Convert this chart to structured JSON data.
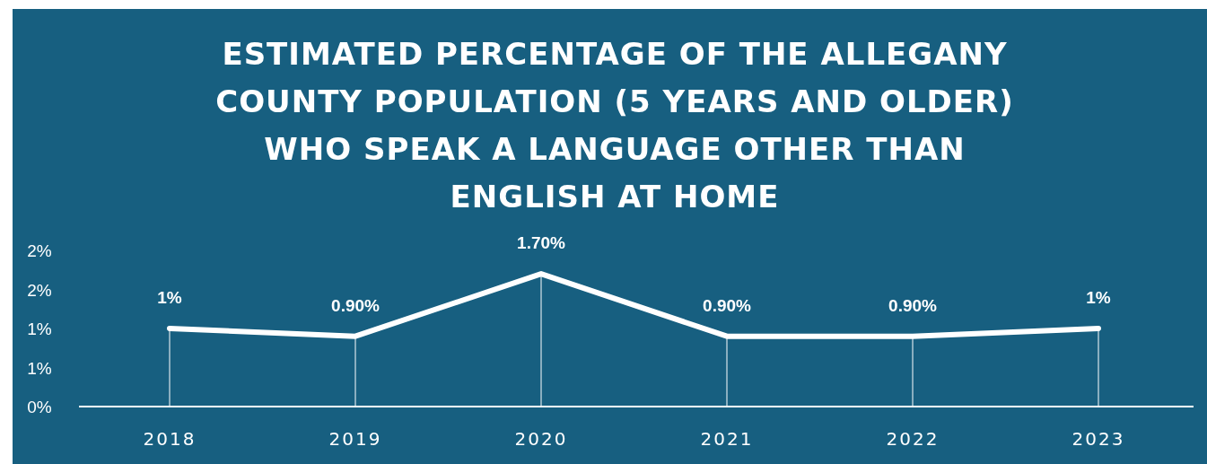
{
  "chart_data": {
    "type": "line",
    "title": "ESTIMATED PERCENTAGE OF THE ALLEGANY COUNTY POPULATION (5 YEARS AND OLDER) WHO SPEAK A LANGUAGE OTHER THAN ENGLISH AT HOME",
    "categories": [
      "2018",
      "2019",
      "2020",
      "2021",
      "2022",
      "2023"
    ],
    "series": [
      {
        "color": "#ffffff",
        "values": [
          1,
          0.9,
          1.7,
          0.9,
          0.9,
          1
        ],
        "value_labels": [
          "1%",
          "0.90%",
          "1.70%",
          "0.90%",
          "0.90%",
          "1%"
        ]
      }
    ],
    "ylim": [
      0,
      2
    ],
    "yticks": [
      {
        "value": 0,
        "label": "0%"
      },
      {
        "value": 0.5,
        "label": "1%"
      },
      {
        "value": 1,
        "label": "1%"
      },
      {
        "value": 1.5,
        "label": "2%"
      },
      {
        "value": 2,
        "label": "2%"
      }
    ],
    "grid": "x",
    "marker": "none",
    "line_style": "solid"
  }
}
